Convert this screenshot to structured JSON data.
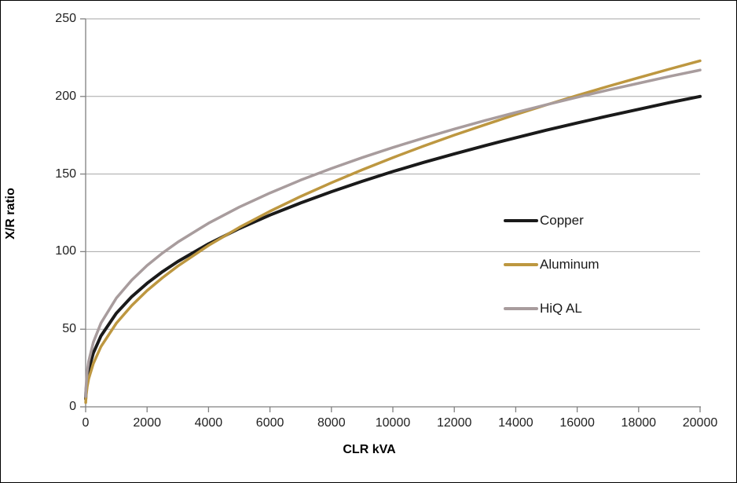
{
  "chart_data": {
    "type": "line",
    "title": "",
    "xlabel": "CLR kVA",
    "ylabel": "X/R ratio",
    "xlim": [
      0,
      20000
    ],
    "ylim": [
      0,
      250
    ],
    "x_ticks": [
      0,
      2000,
      4000,
      6000,
      8000,
      10000,
      12000,
      14000,
      16000,
      18000,
      20000
    ],
    "y_ticks": [
      0,
      50,
      100,
      150,
      200,
      250
    ],
    "grid": "horizontal-only",
    "legend_position": "center-right-inside",
    "x": [
      2,
      10,
      50,
      100,
      250,
      500,
      1000,
      1500,
      2000,
      2500,
      3000,
      4000,
      5000,
      6000,
      7000,
      8000,
      9000,
      10000,
      11000,
      12000,
      13000,
      14000,
      15000,
      16000,
      17000,
      18000,
      19000,
      20000
    ],
    "series": [
      {
        "name": "Copper",
        "color": "#1a1a1a",
        "stroke_width": 4,
        "values": [
          5.0,
          9.6,
          18.2,
          24.0,
          34.7,
          45.7,
          60.3,
          71.0,
          79.6,
          87.1,
          93.6,
          105.0,
          114.9,
          123.6,
          131.4,
          138.6,
          145.3,
          151.6,
          157.5,
          163.0,
          168.3,
          173.4,
          178.3,
          182.9,
          187.4,
          191.7,
          196.0,
          200.0
        ]
      },
      {
        "name": "Aluminum",
        "color": "#bd9740",
        "stroke_width": 3.5,
        "values": [
          2.8,
          6.1,
          13.0,
          18.1,
          27.9,
          38.8,
          53.9,
          65.3,
          74.9,
          83.2,
          90.7,
          104.0,
          115.6,
          126.0,
          135.6,
          144.4,
          152.7,
          160.6,
          168.0,
          175.1,
          181.8,
          188.3,
          194.6,
          200.6,
          206.5,
          212.1,
          217.6,
          223.0
        ]
      },
      {
        "name": "HiQ AL",
        "color": "#a89c9d",
        "stroke_width": 3.5,
        "values": [
          6.7,
          12.4,
          22.7,
          29.4,
          41.6,
          54.0,
          70.1,
          81.7,
          91.1,
          99.1,
          106.1,
          118.3,
          128.7,
          137.8,
          146.1,
          153.6,
          160.6,
          167.1,
          173.2,
          179.0,
          184.5,
          189.7,
          194.7,
          199.5,
          204.1,
          208.5,
          212.9,
          217.0
        ]
      }
    ],
    "colors": {
      "gridline": "#a6a6a6",
      "axis": "#808080",
      "tick_text": "#1f1f1f",
      "background": "#ffffff"
    }
  }
}
